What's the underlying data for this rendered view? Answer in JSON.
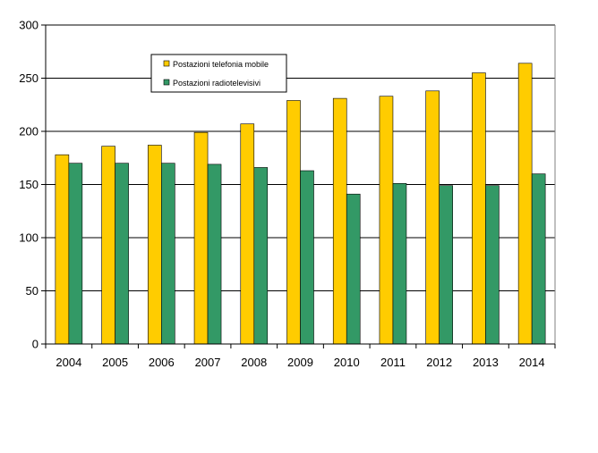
{
  "chart_data": {
    "type": "bar",
    "title": "",
    "xlabel": "",
    "ylabel": "",
    "categories": [
      "2004",
      "2005",
      "2006",
      "2007",
      "2008",
      "2009",
      "2010",
      "2011",
      "2012",
      "2013",
      "2014"
    ],
    "series": [
      {
        "name": "Postazioni telefonia mobile",
        "color": "#FFCC00",
        "values": [
          178,
          186,
          187,
          199,
          207,
          229,
          231,
          233,
          238,
          255,
          264
        ]
      },
      {
        "name": "Postazioni radiotelevisivi",
        "color": "#339966",
        "values": [
          170,
          170,
          170,
          169,
          166,
          163,
          141,
          151,
          149,
          149,
          160
        ]
      }
    ],
    "ylim": [
      0,
      300
    ],
    "yticks": [
      0,
      50,
      100,
      150,
      200,
      250,
      300
    ],
    "grid": true,
    "legend_position": "top-left"
  }
}
